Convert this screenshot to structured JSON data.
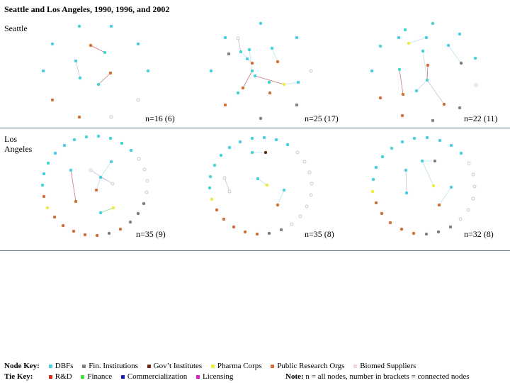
{
  "title": "Seattle and Los Angeles, 1990, 1996, and 2002",
  "rows": [
    {
      "label": "Seattle",
      "counts": [
        "n=16 (6)",
        "n=25 (17)",
        "n=22 (11)"
      ]
    },
    {
      "label": "Los\nAngeles",
      "counts": [
        "n=35 (9)",
        "n=35 (8)",
        "n=32 (8)"
      ]
    }
  ],
  "node_key": {
    "heading": "Node Key:",
    "items": [
      {
        "label": "DBFs",
        "color": "#48d1dc",
        "icon": "cyan-node-icon"
      },
      {
        "label": "Fin. Institutions",
        "color": "#7f7f7f",
        "icon": "gray-node-icon"
      },
      {
        "label": "Gov’t Institutes",
        "color": "#6b2a14",
        "icon": "brown-node-icon"
      },
      {
        "label": "Pharma Corps",
        "color": "#ecec3a",
        "icon": "yellow-node-icon"
      },
      {
        "label": "Public Research Orgs",
        "color": "#d2703a",
        "icon": "orange-node-icon"
      },
      {
        "label": "Biomed Suppliers",
        "color": "#f2d6e2",
        "icon": "pink-node-icon"
      }
    ]
  },
  "tie_key": {
    "heading": "Tie Key:",
    "items": [
      {
        "label": "R&D",
        "color": "#d42a1a",
        "icon": "red-tie-icon"
      },
      {
        "label": "Finance",
        "color": "#3fe23a",
        "icon": "green-tie-icon"
      },
      {
        "label": "Commercialization",
        "color": "#1a1ab4",
        "icon": "blue-tie-icon"
      },
      {
        "label": "Licensing",
        "color": "#d61fc4",
        "icon": "magenta-tie-icon"
      }
    ]
  },
  "note": {
    "bold": "Note:",
    "text": " n = all nodes, number in brackets = connected nodes"
  }
}
